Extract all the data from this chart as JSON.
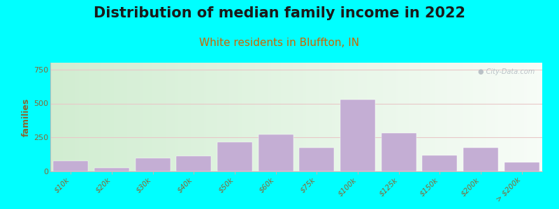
{
  "title": "Distribution of median family income in 2022",
  "subtitle": "White residents in Bluffton, IN",
  "ylabel": "families",
  "categories": [
    "$10k",
    "$20k",
    "$30k",
    "$40k",
    "$50k",
    "$60k",
    "$75k",
    "$100k",
    "$125k",
    "$150k",
    "$200k",
    "> $200k"
  ],
  "values": [
    75,
    25,
    95,
    115,
    215,
    270,
    175,
    530,
    280,
    120,
    175,
    65
  ],
  "bar_color": "#c4aed4",
  "bar_edgecolor": "#c4aed4",
  "background_outer": "#00ffff",
  "title_fontsize": 15,
  "subtitle_fontsize": 11,
  "subtitle_color": "#cc6600",
  "ylabel_color": "#886633",
  "tick_color": "#886633",
  "ylim": [
    0,
    800
  ],
  "yticks": [
    0,
    250,
    500,
    750
  ],
  "watermark": "City-Data.com",
  "grid_color": "#e8c8c8",
  "title_color": "#1a1a1a"
}
